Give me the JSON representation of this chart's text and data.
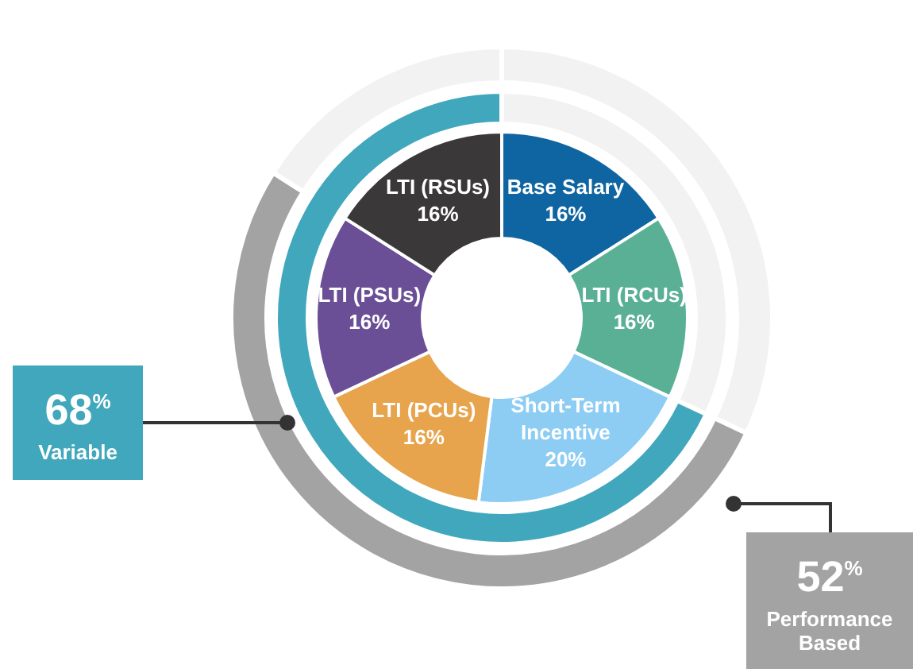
{
  "chart_data": [
    {
      "type": "donut",
      "categories": [
        "Base Salary",
        "LTI (RCUs)",
        "Short-Term Incentive",
        "LTI (PCUs)",
        "LTI (PSUs)",
        "LTI (RSUs)"
      ],
      "values": [
        16,
        16,
        20,
        16,
        16,
        16
      ],
      "colors": [
        "#0e65a1",
        "#59b094",
        "#8dcdf4",
        "#e8a44c",
        "#6b4f96",
        "#3a3838"
      ],
      "value_labels": [
        "16%",
        "16%",
        "20%",
        "16%",
        "16%",
        "16%"
      ],
      "legend": false
    },
    {
      "type": "donut",
      "categories": [
        null,
        "Variable"
      ],
      "values": [
        32,
        68
      ],
      "colors": [
        "#f2f2f2",
        "#41a7bc"
      ],
      "annotations": [
        "68$^{%}$"
      ],
      "legend": false
    },
    {
      "type": "donut",
      "categories": [
        null,
        "Performance Based",
        null
      ],
      "values": [
        32,
        52,
        16
      ],
      "colors": [
        "#f2f2f2",
        "#a3a3a3",
        "#f2f2f2"
      ],
      "annotations": [
        "52$^{%}$"
      ],
      "legend": false
    }
  ]
}
